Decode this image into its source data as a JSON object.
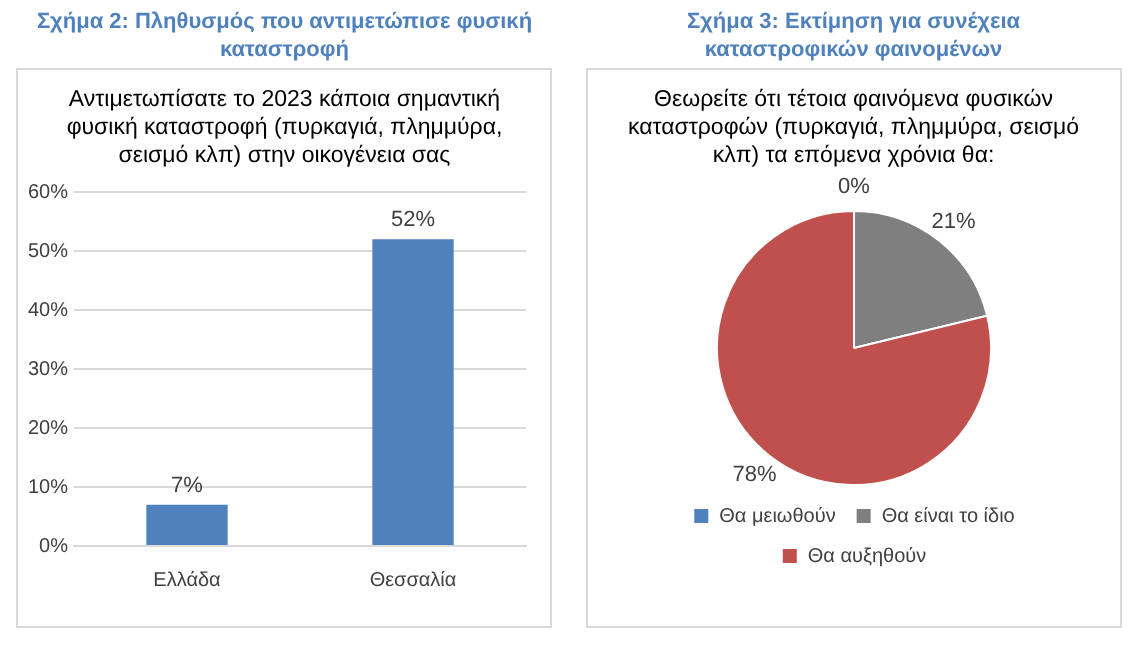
{
  "chart_data": [
    {
      "type": "bar",
      "title": "Σχήμα 2: Πληθυσμός που αντιμετώπισε φυσική καταστροφή",
      "subtitle": "Αντιμετωπίσατε το 2023 κάποια σημαντική φυσική καταστροφή (πυρκαγιά, πλημμύρα, σεισμό κλπ) στην οικογένεια σας",
      "categories": [
        "Ελλάδα",
        "Θεσσαλία"
      ],
      "values": [
        7,
        52
      ],
      "value_labels": [
        "7%",
        "52%"
      ],
      "color": "#4f81bd",
      "ylim": [
        0,
        60
      ],
      "yticks": [
        {
          "value": 0,
          "label": "0%"
        },
        {
          "value": 10,
          "label": "10%"
        },
        {
          "value": 20,
          "label": "20%"
        },
        {
          "value": 30,
          "label": "30%"
        },
        {
          "value": 40,
          "label": "40%"
        },
        {
          "value": 50,
          "label": "50%"
        },
        {
          "value": 60,
          "label": "60%"
        }
      ],
      "grid": "y",
      "legend": false
    },
    {
      "type": "pie",
      "title": "Σχήμα 3: Εκτίμηση για συνέχεια καταστροφικών φαινομένων",
      "subtitle": "Θεωρείτε ότι τέτοια φαινόμενα φυσικών καταστροφών (πυρκαγιά, πλημμύρα, σεισμό κλπ) τα επόμενα χρόνια θα:",
      "categories": [
        "Θα μειωθούν",
        "Θα είναι το ίδιο",
        "Θα αυξηθούν"
      ],
      "values": [
        0,
        21,
        78
      ],
      "value_labels": [
        "0%",
        "21%",
        "78%"
      ],
      "colors": [
        "#4f81bd",
        "#7f7f7f",
        "#c0504d"
      ],
      "legend": "bottom"
    }
  ]
}
